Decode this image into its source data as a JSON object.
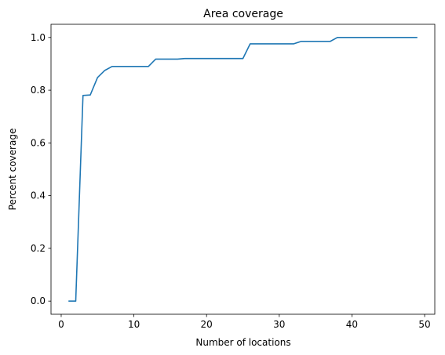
{
  "chart_data": {
    "type": "line",
    "title": "Area coverage",
    "xlabel": "Number of locations",
    "ylabel": "Percent coverage",
    "xlim": [
      -1.4,
      51.4
    ],
    "ylim": [
      -0.05,
      1.05
    ],
    "xticks": [
      0,
      10,
      20,
      30,
      40,
      50
    ],
    "yticks": [
      0.0,
      0.2,
      0.4,
      0.6,
      0.8,
      1.0
    ],
    "xtick_labels": [
      "0",
      "10",
      "20",
      "30",
      "40",
      "50"
    ],
    "ytick_labels": [
      "0.0",
      "0.2",
      "0.4",
      "0.6",
      "0.8",
      "1.0"
    ],
    "grid": false,
    "line_color": "#1f77b4",
    "series": [
      {
        "x": [
          1,
          2,
          3,
          4,
          5,
          6,
          7,
          8,
          9,
          10,
          11,
          12,
          13,
          14,
          15,
          16,
          17,
          18,
          19,
          20,
          21,
          22,
          23,
          24,
          25,
          26,
          27,
          28,
          29,
          30,
          31,
          32,
          33,
          34,
          35,
          36,
          37,
          38,
          39,
          40,
          41,
          42,
          43,
          44,
          45,
          46,
          47,
          48,
          49
        ],
        "values": [
          0.0,
          0.0,
          0.78,
          0.782,
          0.848,
          0.875,
          0.89,
          0.89,
          0.89,
          0.89,
          0.89,
          0.89,
          0.918,
          0.918,
          0.918,
          0.918,
          0.92,
          0.92,
          0.92,
          0.92,
          0.92,
          0.92,
          0.92,
          0.92,
          0.92,
          0.976,
          0.976,
          0.976,
          0.976,
          0.976,
          0.976,
          0.976,
          0.985,
          0.985,
          0.985,
          0.985,
          0.985,
          1.0,
          1.0,
          1.0,
          1.0,
          1.0,
          1.0,
          1.0,
          1.0,
          1.0,
          1.0,
          1.0,
          1.0
        ]
      }
    ]
  }
}
